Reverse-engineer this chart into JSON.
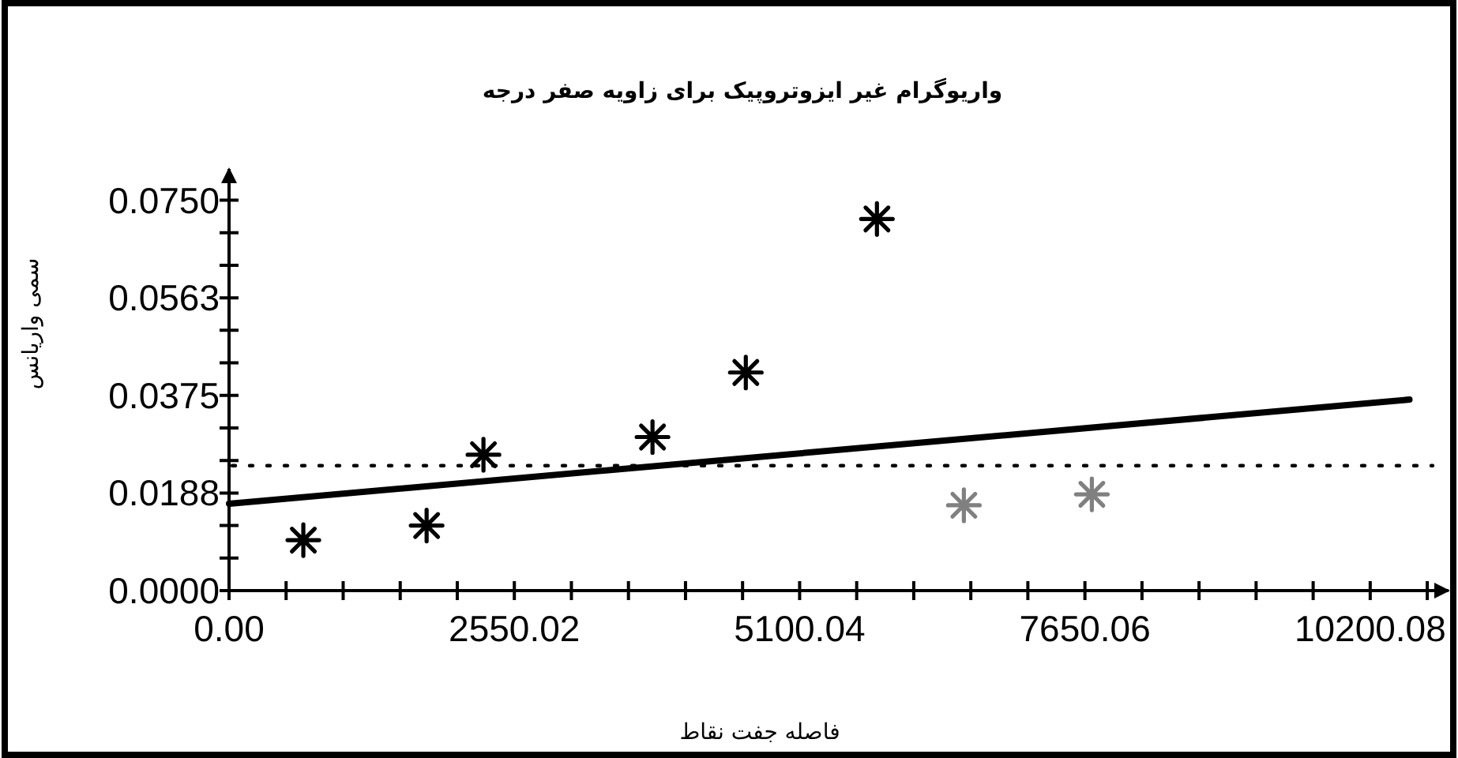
{
  "chart_data": {
    "type": "scatter",
    "title": "واریوگرام غیر ایزوتروپیک برای زاویه صفر درجه",
    "xlabel": "فاصله جفت نقاط",
    "ylabel": "سمی واریانس",
    "xlim": [
      0,
      10900
    ],
    "xticks": [
      {
        "value": 0,
        "label": "0.00"
      },
      {
        "value": 510.004,
        "label": null
      },
      {
        "value": 1020.008,
        "label": null
      },
      {
        "value": 1530.012,
        "label": null
      },
      {
        "value": 2040.016,
        "label": null
      },
      2550.02,
      {
        "value": 3060.024,
        "label": null
      },
      {
        "value": 3570.028,
        "label": null
      },
      {
        "value": 4080.032,
        "label": null
      },
      {
        "value": 4590.036,
        "label": null
      },
      5100.04,
      {
        "value": 5610.044,
        "label": null
      },
      {
        "value": 6120.048,
        "label": null
      },
      {
        "value": 6630.052,
        "label": null
      },
      {
        "value": 7140.056,
        "label": null
      },
      7650.06,
      {
        "value": 8160.064,
        "label": null
      },
      {
        "value": 8670.068,
        "label": null
      },
      {
        "value": 9180.072,
        "label": null
      },
      {
        "value": 9690.076,
        "label": null
      },
      10200.08,
      {
        "value": 10710.084,
        "label": null
      }
    ],
    "ylim": [
      0,
      0.081
    ],
    "yticks": [
      {
        "value": 0,
        "label": "0.0000"
      },
      {
        "value": 0.00625,
        "label": null
      },
      {
        "value": 0.0125,
        "label": null
      },
      {
        "value": 0.01875,
        "label": "0.0188"
      },
      {
        "value": 0.025,
        "label": null
      },
      {
        "value": 0.03125,
        "label": null
      },
      {
        "value": 0.0375,
        "label": "0.0375"
      },
      {
        "value": 0.04375,
        "label": null
      },
      {
        "value": 0.05,
        "label": null
      },
      {
        "value": 0.05625,
        "label": "0.0563"
      },
      {
        "value": 0.0625,
        "label": null
      },
      {
        "value": 0.06875,
        "label": null
      },
      {
        "value": 0.075,
        "label": "0.0750"
      }
    ],
    "marker": "cross",
    "grid": false,
    "series": [
      {
        "color": "#000000",
        "x": [
          664,
          1766,
          2274,
          3785,
          4619,
          5791
        ],
        "values": [
          0.0097,
          0.0125,
          0.0261,
          0.0295,
          0.0419,
          0.0714
        ]
      },
      {
        "color": "#808080",
        "x": [
          6568,
          7712
        ],
        "values": [
          0.0164,
          0.0185
        ]
      },
      {
        "type": "line",
        "marker": "none",
        "color": "#000000",
        "x": [
          0,
          10551
        ],
        "values": [
          0.0167,
          0.0367
        ]
      }
    ],
    "ref_lines": [
      {
        "axis": "y",
        "value": 0.024,
        "line_style": "dotted",
        "color": "#000000"
      }
    ]
  }
}
